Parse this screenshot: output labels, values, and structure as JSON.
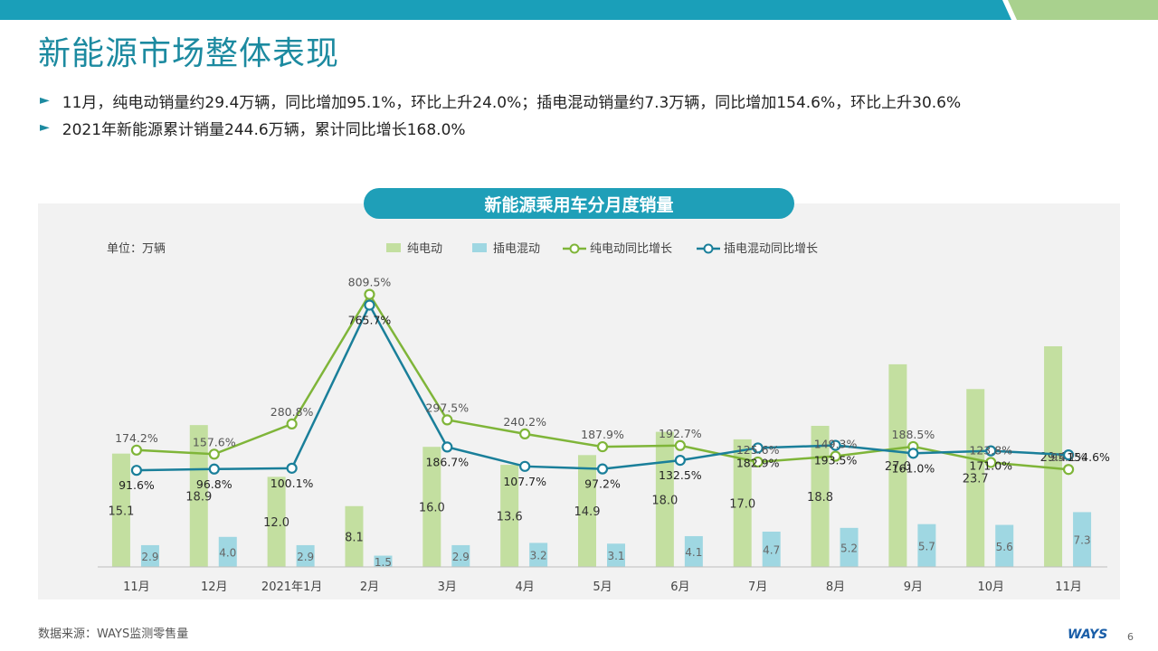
{
  "page": {
    "title": "新能源市场整体表现",
    "bullets": [
      "11月，纯电动销量约29.4万辆，同比增加95.1%，环比上升24.0%；插电混动销量约7.3万辆，同比增加154.6%，环比上升30.6%",
      "2021年新能源累计销量244.6万辆，累计同比增长168.0%"
    ],
    "source": "数据来源：WAYS监测零售量",
    "logo": "WAYS",
    "page_number": "6",
    "colors": {
      "accent": "#1c8aa0",
      "header_teal": "#1a9fb9",
      "header_green": "#a9d18e",
      "bev_bar": "#c3dfa0",
      "phev_bar": "#9fd7e2",
      "bev_line": "#7fb539",
      "phev_line": "#1a7f9a"
    }
  },
  "chart_data": {
    "type": "bar",
    "title": "新能源乘用车分月度销量",
    "unit_label": "单位：万辆",
    "categories": [
      "11月",
      "12月",
      "2021年1月",
      "2月",
      "3月",
      "4月",
      "5月",
      "6月",
      "7月",
      "8月",
      "9月",
      "10月",
      "11月"
    ],
    "series": [
      {
        "name": "纯电动",
        "type": "bar",
        "values": [
          15.1,
          18.9,
          12.0,
          8.1,
          16.0,
          13.6,
          14.9,
          18.0,
          17.0,
          18.8,
          27.0,
          23.7,
          29.4
        ]
      },
      {
        "name": "插电混动",
        "type": "bar",
        "values": [
          2.9,
          4.0,
          2.9,
          1.5,
          2.9,
          3.2,
          3.1,
          4.1,
          4.7,
          5.2,
          5.7,
          5.6,
          7.3
        ]
      },
      {
        "name": "纯电动同比增长",
        "type": "line",
        "values": [
          174.2,
          157.6,
          280.8,
          809.5,
          297.5,
          240.2,
          187.9,
          192.7,
          125.6,
          149.3,
          188.5,
          123.8,
          95.1
        ]
      },
      {
        "name": "插电混动同比增长",
        "type": "line",
        "values": [
          91.6,
          96.8,
          100.1,
          765.7,
          186.7,
          107.7,
          97.2,
          132.5,
          182.9,
          193.5,
          161.0,
          171.0,
          154.6
        ]
      }
    ],
    "legend_position": "top",
    "grid": false
  }
}
